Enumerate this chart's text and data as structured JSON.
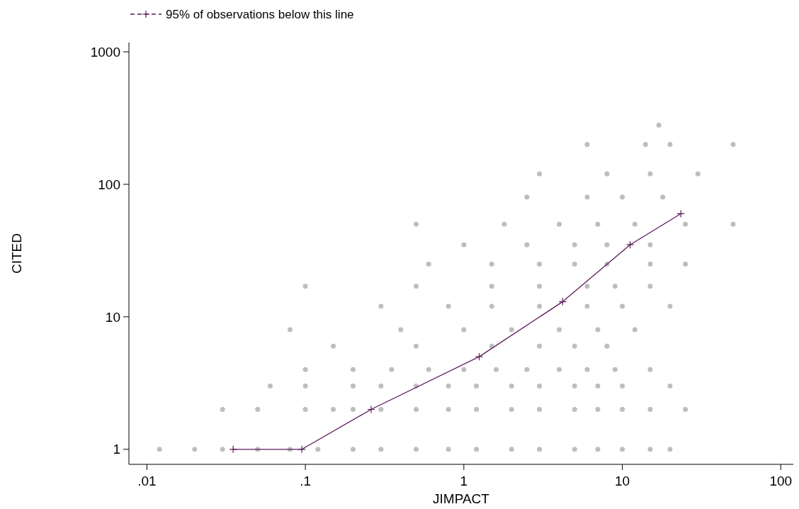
{
  "chart_data": {
    "type": "scatter",
    "xlabel": "JIMPACT",
    "ylabel": "CITED",
    "log": "xy",
    "grid": false,
    "legend": "top left",
    "xlim": [
      0.0077,
      120
    ],
    "ylim": [
      0.77,
      1175
    ],
    "xticks": [
      {
        "value": 0.01,
        "label": ".01"
      },
      {
        "value": 0.1,
        "label": ".1"
      },
      1,
      10,
      100
    ],
    "yticks": [
      1,
      10,
      100,
      1000
    ],
    "series": [
      {
        "color": "#bebebe",
        "marker": "circle",
        "x": [
          0.012,
          0.02,
          0.03,
          0.05,
          0.08,
          0.12,
          0.2,
          0.3,
          0.5,
          0.8,
          1.2,
          2,
          3,
          5,
          7,
          10,
          15,
          20,
          0.03,
          0.05,
          0.1,
          0.15,
          0.2,
          0.3,
          0.5,
          0.8,
          1.2,
          2,
          3,
          5,
          7,
          10,
          15,
          25,
          0.06,
          0.1,
          0.2,
          0.3,
          0.5,
          0.8,
          1.2,
          2,
          3,
          5,
          7,
          10,
          20,
          0.1,
          0.2,
          0.35,
          0.6,
          1,
          1.6,
          2.5,
          4,
          6,
          9,
          15,
          0.15,
          0.5,
          1.5,
          3,
          5,
          8,
          0.08,
          0.4,
          1,
          2,
          4,
          7,
          12,
          0.3,
          0.8,
          1.5,
          3,
          6,
          10,
          20,
          0.1,
          0.5,
          1.5,
          3,
          6,
          9,
          15,
          0.6,
          1.5,
          3,
          5,
          8,
          15,
          25,
          1,
          2.5,
          5,
          8,
          15,
          0.5,
          1.8,
          4,
          7,
          12,
          25,
          50,
          2.5,
          6,
          10,
          18,
          3,
          8,
          15,
          30,
          6,
          14,
          20,
          50,
          17
        ],
        "values": [
          1,
          1,
          1,
          1,
          1,
          1,
          1,
          1,
          1,
          1,
          1,
          1,
          1,
          1,
          1,
          1,
          1,
          1,
          2,
          2,
          2,
          2,
          2,
          2,
          2,
          2,
          2,
          2,
          2,
          2,
          2,
          2,
          2,
          2,
          3,
          3,
          3,
          3,
          3,
          3,
          3,
          3,
          3,
          3,
          3,
          3,
          3,
          4,
          4,
          4,
          4,
          4,
          4,
          4,
          4,
          4,
          4,
          4,
          6,
          6,
          6,
          6,
          6,
          6,
          8,
          8,
          8,
          8,
          8,
          8,
          8,
          12,
          12,
          12,
          12,
          12,
          12,
          12,
          17,
          17,
          17,
          17,
          17,
          17,
          17,
          25,
          25,
          25,
          25,
          25,
          25,
          25,
          35,
          35,
          35,
          35,
          35,
          50,
          50,
          50,
          50,
          50,
          50,
          50,
          80,
          80,
          80,
          80,
          120,
          120,
          120,
          120,
          200,
          200,
          200,
          200,
          280
        ]
      },
      {
        "type": "line",
        "name": "95% of observations below this line",
        "color": "#5b1a5b",
        "marker": "cross",
        "x": [
          0.035,
          0.095,
          0.26,
          1.25,
          4.2,
          11.2,
          23.4
        ],
        "values": [
          1,
          1,
          2,
          5,
          13,
          35,
          60
        ]
      }
    ]
  }
}
